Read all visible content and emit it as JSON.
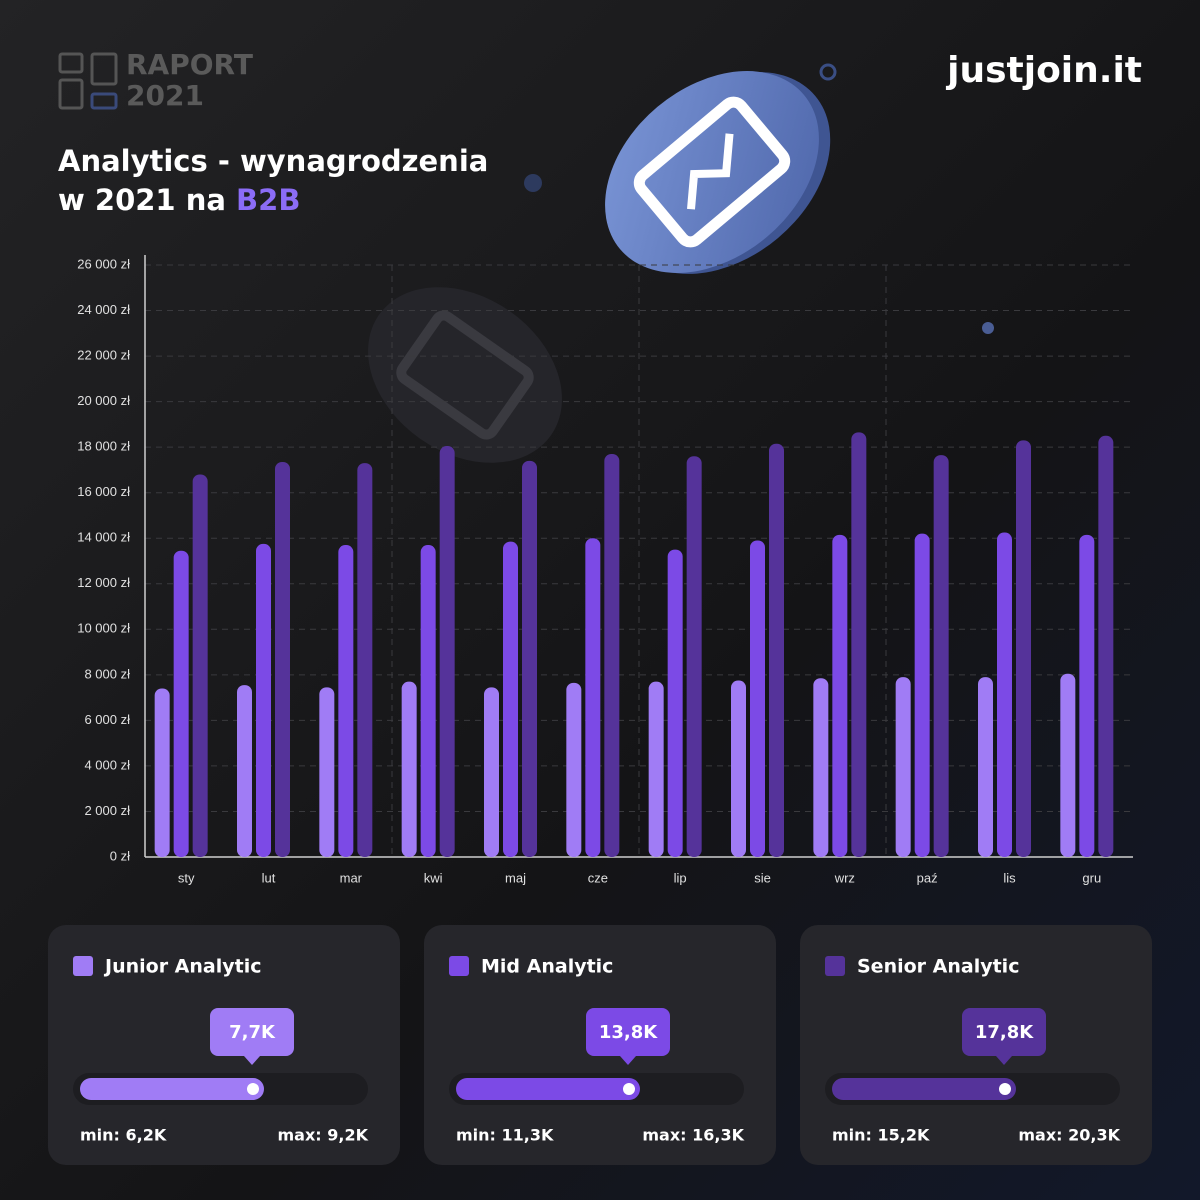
{
  "header": {
    "report": "RAPORT",
    "year": "2021",
    "brand": "justjoin.it"
  },
  "chart_data": {
    "type": "bar",
    "title": {
      "line1": "Analytics - wynagrodzenia",
      "line2": "w 2021 na",
      "highlight": "B2B"
    },
    "categories": [
      "sty",
      "lut",
      "mar",
      "kwi",
      "maj",
      "cze",
      "lip",
      "sie",
      "wrz",
      "paź",
      "lis",
      "gru"
    ],
    "series": [
      {
        "name": "Junior Analytic",
        "color": "#a07cf5",
        "values": [
          7400,
          7550,
          7450,
          7700,
          7450,
          7650,
          7700,
          7750,
          7850,
          7900,
          7900,
          8050
        ]
      },
      {
        "name": "Mid Analytic",
        "color": "#7c4ae6",
        "values": [
          13450,
          13750,
          13700,
          13700,
          13850,
          14000,
          13500,
          13900,
          14150,
          14200,
          14250,
          14150
        ]
      },
      {
        "name": "Senior Analytic",
        "color": "#55339a",
        "values": [
          16800,
          17350,
          17300,
          18050,
          17400,
          17700,
          17600,
          18150,
          18650,
          17650,
          18300,
          18500
        ]
      }
    ],
    "ylim": [
      0,
      26000
    ],
    "yticks": [
      {
        "value": 0,
        "label": "0 zł"
      },
      {
        "value": 2000,
        "label": "2 000 zł"
      },
      {
        "value": 4000,
        "label": "4 000 zł"
      },
      {
        "value": 6000,
        "label": "6 000 zł"
      },
      {
        "value": 8000,
        "label": "8 000 zł"
      },
      {
        "value": 10000,
        "label": "10 000 zł"
      },
      {
        "value": 12000,
        "label": "12 000 zł"
      },
      {
        "value": 14000,
        "label": "14 000 zł"
      },
      {
        "value": 16000,
        "label": "16 000 zł"
      },
      {
        "value": 18000,
        "label": "18 000 zł"
      },
      {
        "value": 20000,
        "label": "20 000 zł"
      },
      {
        "value": 22000,
        "label": "22 000 zł"
      },
      {
        "value": 24000,
        "label": "24 000 zł"
      },
      {
        "value": 26000,
        "label": "26 000 zł"
      }
    ],
    "grid": true
  },
  "cards": [
    {
      "value": "7,7K",
      "min": "min: 6,2K",
      "max": "max: 9,2K"
    },
    {
      "value": "13,8K",
      "min": "min: 11,3K",
      "max": "max: 16,3K"
    },
    {
      "value": "17,8K",
      "min": "min: 15,2K",
      "max": "max: 20,3K"
    }
  ]
}
